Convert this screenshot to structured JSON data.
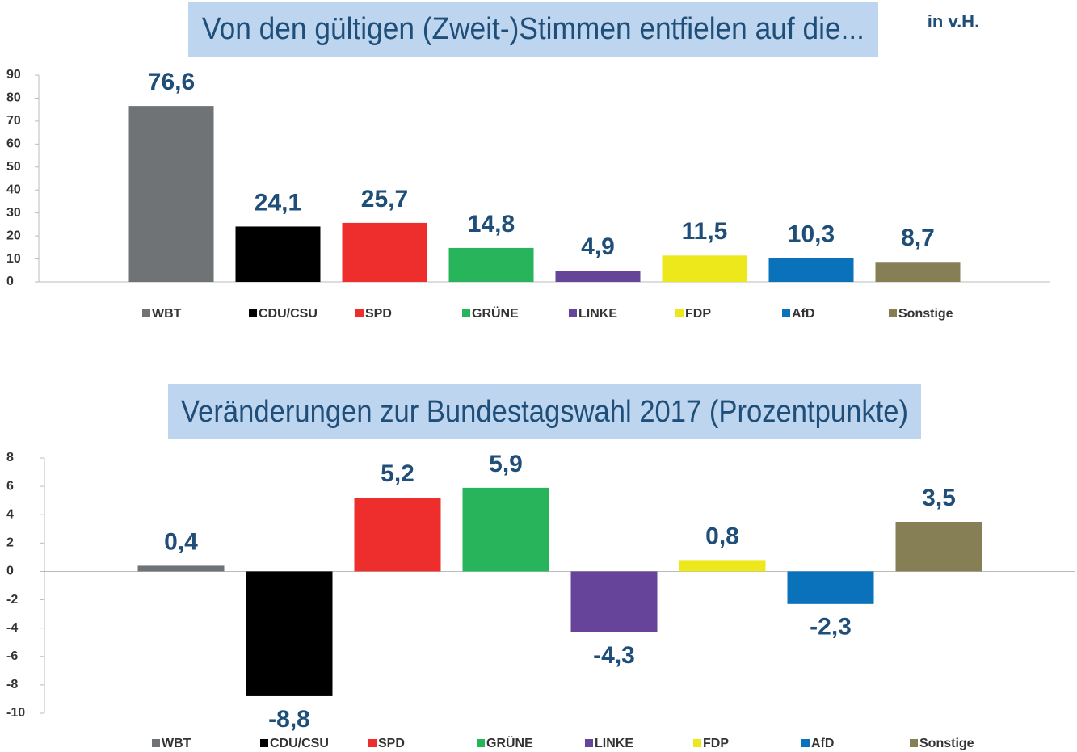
{
  "chart_data": [
    {
      "type": "bar",
      "title": "Von den gültigen (Zweit-)Stimmen entfielen auf die...",
      "note": "in v.H.",
      "categories": [
        "WBT",
        "CDU/CSU",
        "SPD",
        "GRÜNE",
        "LINKE",
        "FDP",
        "AfD",
        "Sonstige"
      ],
      "values": [
        76.6,
        24.1,
        25.7,
        14.8,
        4.9,
        11.5,
        10.3,
        8.7
      ],
      "value_labels": [
        "76,6",
        "24,1",
        "25,7",
        "14,8",
        "4,9",
        "11,5",
        "10,3",
        "8,7"
      ],
      "colors": [
        "#707375",
        "#000000",
        "#ee2d2d",
        "#27b45b",
        "#65449a",
        "#ece81c",
        "#0a72bb",
        "#867f55"
      ],
      "ylim": [
        0,
        90
      ],
      "yticks": [
        0,
        10,
        20,
        30,
        40,
        50,
        60,
        70,
        80,
        90
      ]
    },
    {
      "type": "bar",
      "title": "Veränderungen zur Bundestagswahl 2017 (Prozentpunkte)",
      "categories": [
        "WBT",
        "CDU/CSU",
        "SPD",
        "GRÜNE",
        "LINKE",
        "FDP",
        "AfD",
        "Sonstige"
      ],
      "values": [
        0.4,
        -8.8,
        5.2,
        5.9,
        -4.3,
        0.8,
        -2.3,
        3.5
      ],
      "value_labels": [
        "0,4",
        "-8,8",
        "5,2",
        "5,9",
        "-4,3",
        "0,8",
        "-2,3",
        "3,5"
      ],
      "colors": [
        "#707375",
        "#000000",
        "#ee2d2d",
        "#27b45b",
        "#65449a",
        "#ece81c",
        "#0a72bb",
        "#867f55"
      ],
      "ylim": [
        -10,
        8
      ],
      "yticks": [
        -10,
        -8,
        -6,
        -4,
        -2,
        0,
        2,
        4,
        6,
        8
      ]
    }
  ]
}
